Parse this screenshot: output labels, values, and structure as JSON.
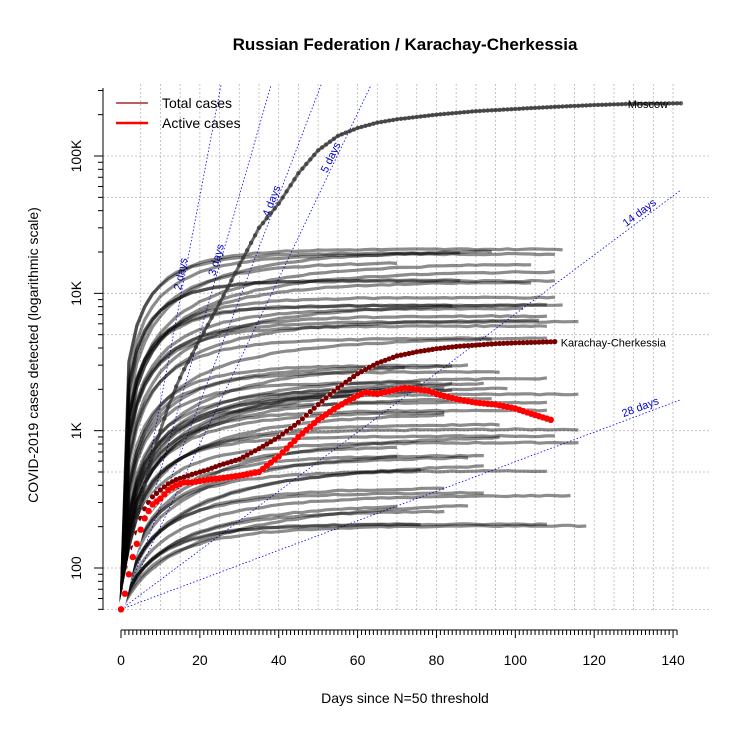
{
  "chart_data": {
    "type": "line",
    "title": "Russian Federation / Karachay-Cherkessia",
    "xlabel": "Days since N=50 threshold",
    "ylabel": "COVID-2019 cases detected (logarithmic scale)",
    "y_scale": "log",
    "xlim": [
      0,
      142
    ],
    "ylim": [
      45,
      340000
    ],
    "x_ticks": [
      0,
      20,
      40,
      60,
      80,
      100,
      120,
      140
    ],
    "y_ticks": [
      {
        "value": 100,
        "label": "100"
      },
      {
        "value": 1000,
        "label": "1K"
      },
      {
        "value": 10000,
        "label": "10K"
      },
      {
        "value": 100000,
        "label": "100K"
      }
    ],
    "grid": true,
    "legend": {
      "placement": "top-left",
      "entries": [
        {
          "label": "Total cases",
          "color": "#a52a2a"
        },
        {
          "label": "Active cases",
          "color": "#ff0000"
        }
      ]
    },
    "doubling_lines": [
      {
        "label": "2 days",
        "days": 2
      },
      {
        "label": "3 days",
        "days": 3
      },
      {
        "label": "4 days",
        "days": 4
      },
      {
        "label": "5 days",
        "days": 5
      },
      {
        "label": "14 days",
        "days": 14
      },
      {
        "label": "28 days",
        "days": 28
      }
    ],
    "annotations": [
      {
        "text": "Moscow",
        "x": 128,
        "y": 240000
      },
      {
        "text": "Karachay-Cherkessia",
        "x": 111,
        "y": 4400
      }
    ],
    "series": [
      {
        "name": "Total cases",
        "color": "#7a0000",
        "x": [
          0,
          1,
          2,
          3,
          4,
          5,
          6,
          7,
          8,
          10,
          12,
          14,
          16,
          18,
          20,
          22,
          25,
          30,
          35,
          40,
          45,
          50,
          55,
          60,
          65,
          70,
          75,
          80,
          85,
          90,
          95,
          100,
          105,
          110
        ],
        "values": [
          50,
          70,
          100,
          140,
          180,
          230,
          270,
          300,
          330,
          370,
          410,
          440,
          460,
          480,
          500,
          520,
          560,
          620,
          740,
          900,
          1150,
          1550,
          2050,
          2600,
          3100,
          3500,
          3750,
          3950,
          4100,
          4200,
          4300,
          4360,
          4400,
          4450
        ]
      },
      {
        "name": "Active cases",
        "color": "#ff0000",
        "x": [
          0,
          1,
          2,
          3,
          4,
          5,
          6,
          7,
          8,
          10,
          12,
          14,
          16,
          18,
          20,
          22,
          25,
          30,
          35,
          40,
          45,
          50,
          55,
          60,
          62,
          65,
          70,
          72,
          75,
          78,
          80,
          85,
          90,
          95,
          100,
          105,
          109
        ],
        "values": [
          50,
          65,
          90,
          120,
          150,
          190,
          230,
          260,
          290,
          320,
          370,
          400,
          420,
          420,
          430,
          440,
          450,
          470,
          500,
          650,
          900,
          1200,
          1500,
          1800,
          1900,
          1850,
          2000,
          2050,
          2000,
          1950,
          1850,
          1700,
          1600,
          1550,
          1450,
          1300,
          1200
        ]
      },
      {
        "name": "Moscow",
        "color": "#333333",
        "x": [
          0,
          2,
          4,
          6,
          8,
          10,
          12,
          14,
          16,
          20,
          25,
          30,
          35,
          40,
          45,
          50,
          55,
          60,
          65,
          70,
          80,
          90,
          100,
          110,
          120,
          130,
          142
        ],
        "values": [
          50,
          110,
          220,
          400,
          650,
          1000,
          1500,
          2100,
          2800,
          4600,
          8500,
          16000,
          30000,
          45000,
          75000,
          110000,
          140000,
          160000,
          175000,
          185000,
          200000,
          212000,
          220000,
          228000,
          235000,
          240000,
          242000
        ]
      }
    ]
  }
}
